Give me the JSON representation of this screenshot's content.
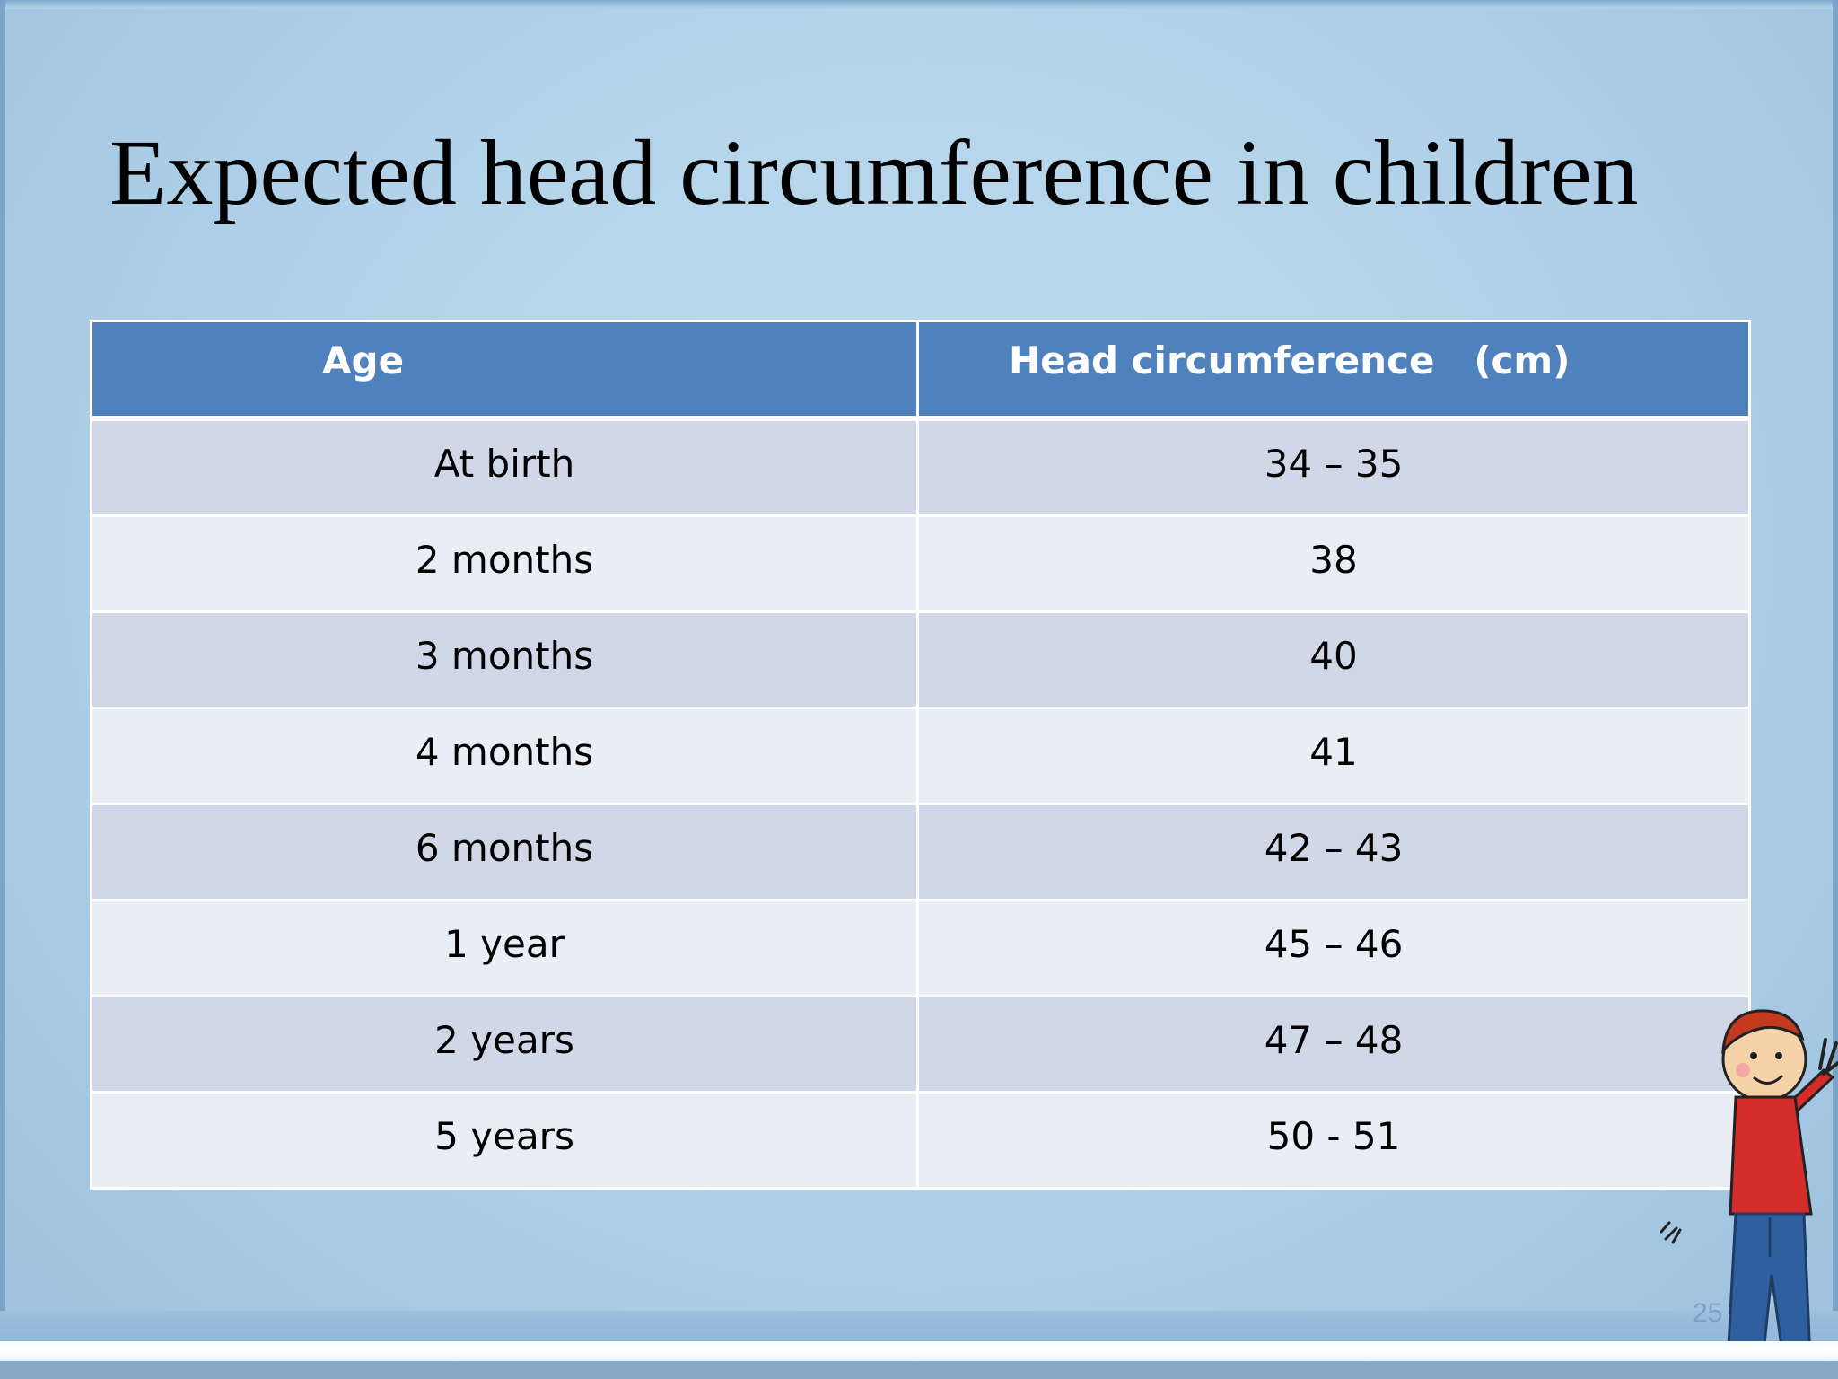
{
  "slide": {
    "title": "Expected head circumference in children",
    "page_number": "25"
  },
  "table": {
    "headers": [
      "Age",
      "Head circumference   (cm)"
    ],
    "rows": [
      [
        "At birth",
        "34 – 35"
      ],
      [
        "2 months",
        "38"
      ],
      [
        "3 months",
        "40"
      ],
      [
        "4 months",
        "41"
      ],
      [
        "6 months",
        "42 – 43"
      ],
      [
        "1 year",
        "45 – 46"
      ],
      [
        "2 years",
        "47 – 48"
      ],
      [
        "5 years",
        "50 - 51"
      ]
    ]
  },
  "illustration": {
    "icon": "cartoon-child-waving-icon"
  },
  "colors": {
    "header_fill": "#4f81bd",
    "row_band_dark": "#d0d8e8",
    "row_band_light": "#e9edf4",
    "background": "#b4d4ea"
  }
}
